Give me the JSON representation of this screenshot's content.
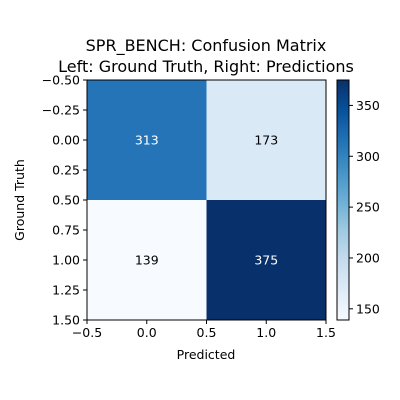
{
  "chart_data": {
    "type": "heatmap",
    "title": "SPR_BENCH: Confusion Matrix",
    "subtitle": "Left: Ground Truth, Right: Predictions",
    "xlabel": "Predicted",
    "ylabel": "Ground Truth",
    "x_range": [
      -0.5,
      1.5
    ],
    "y_range": [
      -0.5,
      1.5
    ],
    "y_inverted": true,
    "x_ticks": [
      "−0.5",
      "0.0",
      "0.5",
      "1.0",
      "1.5"
    ],
    "y_ticks": [
      "−0.50",
      "−0.25",
      "0.00",
      "0.25",
      "0.50",
      "0.75",
      "1.00",
      "1.25",
      "1.50"
    ],
    "matrix": [
      [
        313,
        173
      ],
      [
        139,
        375
      ]
    ],
    "colormap": "Blues",
    "colorbar": {
      "min": 139,
      "max": 375,
      "ticks": [
        150,
        200,
        250,
        300,
        350
      ]
    }
  }
}
